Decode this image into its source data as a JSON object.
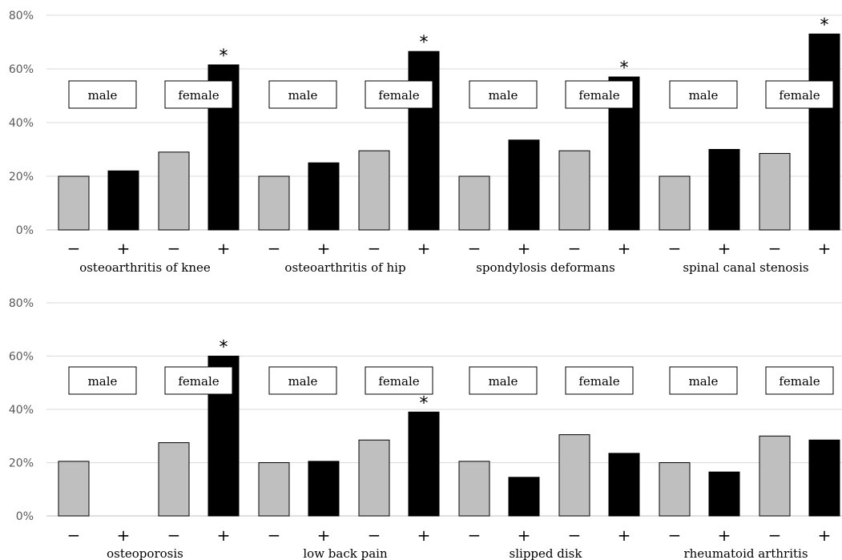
{
  "chart_data": [
    {
      "type": "bar",
      "y_tick_labels": [
        "0%",
        "20%",
        "40%",
        "60%",
        "80%"
      ],
      "ylim": [
        0,
        80
      ],
      "grid": true,
      "x_tick_labels": [
        "−",
        "+",
        "−",
        "+"
      ],
      "sex_labels": [
        "male",
        "female"
      ],
      "significance_marker": "*",
      "colors": {
        "minus": "#bfbfbf",
        "plus": "#000000"
      },
      "groups": [
        {
          "label": "osteoarthritis of knee",
          "values": [
            20,
            22,
            29,
            61.5
          ],
          "significant": [
            false,
            false,
            false,
            true
          ]
        },
        {
          "label": "osteoarthritis of hip",
          "values": [
            20,
            25,
            29.5,
            66.5
          ],
          "significant": [
            false,
            false,
            false,
            true
          ]
        },
        {
          "label": "spondylosis deformans",
          "values": [
            20,
            33.5,
            29.5,
            57
          ],
          "significant": [
            false,
            false,
            false,
            true
          ]
        },
        {
          "label": "spinal canal stenosis",
          "values": [
            20,
            30,
            28.5,
            73
          ],
          "significant": [
            false,
            false,
            false,
            true
          ]
        }
      ]
    },
    {
      "type": "bar",
      "y_tick_labels": [
        "0%",
        "20%",
        "40%",
        "60%",
        "80%"
      ],
      "ylim": [
        0,
        80
      ],
      "grid": true,
      "x_tick_labels": [
        "−",
        "+",
        "−",
        "+"
      ],
      "sex_labels": [
        "male",
        "female"
      ],
      "significance_marker": "*",
      "colors": {
        "minus": "#bfbfbf",
        "plus": "#000000"
      },
      "groups": [
        {
          "label": "osteoporosis",
          "values": [
            20.5,
            0,
            27.5,
            60
          ],
          "significant": [
            false,
            false,
            false,
            true
          ]
        },
        {
          "label": "low back pain",
          "values": [
            20,
            20.5,
            28.5,
            39
          ],
          "significant": [
            false,
            false,
            false,
            true
          ]
        },
        {
          "label": "slipped disk",
          "values": [
            20.5,
            14.5,
            30.5,
            23.5
          ],
          "significant": [
            false,
            false,
            false,
            false
          ]
        },
        {
          "label": "rheumatoid arthritis",
          "values": [
            20,
            16.5,
            30,
            28.5
          ],
          "significant": [
            false,
            false,
            false,
            false
          ]
        }
      ]
    }
  ]
}
